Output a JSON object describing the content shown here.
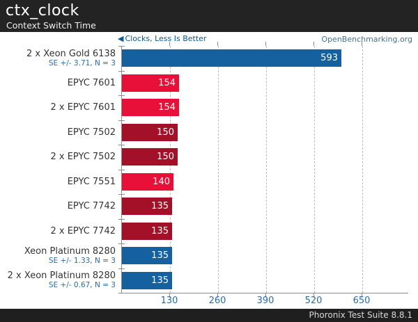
{
  "header": {
    "title": "ctx_clock",
    "subtitle": "Context Switch Time"
  },
  "legend": {
    "arrow_icon": "◀",
    "label": "Clocks, Less Is Better"
  },
  "watermark": "OpenBenchmarking.org",
  "footer": {
    "label": "Phoronix Test Suite 8.8.1"
  },
  "colors": {
    "blue": "#15609f",
    "red": "#e81038",
    "darkred": "#a31129",
    "header_bg": "#232323",
    "footer_bg": "#1f1f1f",
    "tick_label": "#2a6bad",
    "se_text": "#2a6bad",
    "legend_text": "#0b5997",
    "watermark_text": "#45718f"
  },
  "chart_data": {
    "type": "bar",
    "orientation": "horizontal",
    "title": "ctx_clock",
    "subtitle": "Context Switch Time",
    "xlabel": "Clocks, Less Is Better",
    "xlim": [
      0,
      774
    ],
    "xticks": [
      130,
      260,
      390,
      520,
      650
    ],
    "grid": "vertical-dashed",
    "legend_position": "top-left",
    "bars": [
      {
        "label": "2 x Xeon Gold 6138",
        "se": "SE +/- 3.71, N = 3",
        "value": 593,
        "color": "blue"
      },
      {
        "label": "EPYC 7601",
        "se": null,
        "value": 154,
        "color": "red"
      },
      {
        "label": "2 x EPYC 7601",
        "se": null,
        "value": 154,
        "color": "red"
      },
      {
        "label": "EPYC 7502",
        "se": null,
        "value": 150,
        "color": "darkred"
      },
      {
        "label": "2 x EPYC 7502",
        "se": null,
        "value": 150,
        "color": "darkred"
      },
      {
        "label": "EPYC 7551",
        "se": null,
        "value": 140,
        "color": "red"
      },
      {
        "label": "EPYC 7742",
        "se": null,
        "value": 135,
        "color": "darkred"
      },
      {
        "label": "2 x EPYC 7742",
        "se": null,
        "value": 135,
        "color": "darkred"
      },
      {
        "label": "Xeon Platinum 8280",
        "se": "SE +/- 1.33, N = 3",
        "value": 135,
        "color": "blue"
      },
      {
        "label": "2 x Xeon Platinum 8280",
        "se": "SE +/- 0.67, N = 3",
        "value": 135,
        "color": "blue"
      }
    ]
  }
}
